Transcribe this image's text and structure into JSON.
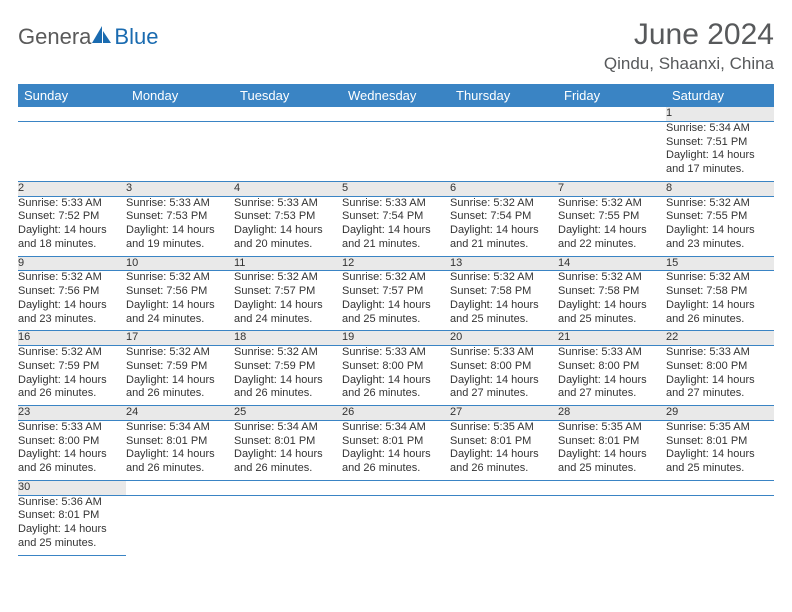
{
  "logo": {
    "part1": "Genera",
    "part2": "Blue"
  },
  "title": "June 2024",
  "location": "Qindu, Shaanxi, China",
  "colors": {
    "header_bg": "#3a84c4",
    "header_fg": "#ffffff",
    "daynum_bg": "#e9e9e9",
    "rule": "#3a84c4",
    "text": "#333333",
    "title": "#57595b",
    "logo_gray": "#5a5a5a",
    "logo_blue": "#1a6bb0"
  },
  "weekdays": [
    "Sunday",
    "Monday",
    "Tuesday",
    "Wednesday",
    "Thursday",
    "Friday",
    "Saturday"
  ],
  "weeks": [
    [
      null,
      null,
      null,
      null,
      null,
      null,
      {
        "n": "1",
        "rise": "5:34 AM",
        "set": "7:51 PM",
        "dl": "14 hours and 17 minutes."
      }
    ],
    [
      {
        "n": "2",
        "rise": "5:33 AM",
        "set": "7:52 PM",
        "dl": "14 hours and 18 minutes."
      },
      {
        "n": "3",
        "rise": "5:33 AM",
        "set": "7:53 PM",
        "dl": "14 hours and 19 minutes."
      },
      {
        "n": "4",
        "rise": "5:33 AM",
        "set": "7:53 PM",
        "dl": "14 hours and 20 minutes."
      },
      {
        "n": "5",
        "rise": "5:33 AM",
        "set": "7:54 PM",
        "dl": "14 hours and 21 minutes."
      },
      {
        "n": "6",
        "rise": "5:32 AM",
        "set": "7:54 PM",
        "dl": "14 hours and 21 minutes."
      },
      {
        "n": "7",
        "rise": "5:32 AM",
        "set": "7:55 PM",
        "dl": "14 hours and 22 minutes."
      },
      {
        "n": "8",
        "rise": "5:32 AM",
        "set": "7:55 PM",
        "dl": "14 hours and 23 minutes."
      }
    ],
    [
      {
        "n": "9",
        "rise": "5:32 AM",
        "set": "7:56 PM",
        "dl": "14 hours and 23 minutes."
      },
      {
        "n": "10",
        "rise": "5:32 AM",
        "set": "7:56 PM",
        "dl": "14 hours and 24 minutes."
      },
      {
        "n": "11",
        "rise": "5:32 AM",
        "set": "7:57 PM",
        "dl": "14 hours and 24 minutes."
      },
      {
        "n": "12",
        "rise": "5:32 AM",
        "set": "7:57 PM",
        "dl": "14 hours and 25 minutes."
      },
      {
        "n": "13",
        "rise": "5:32 AM",
        "set": "7:58 PM",
        "dl": "14 hours and 25 minutes."
      },
      {
        "n": "14",
        "rise": "5:32 AM",
        "set": "7:58 PM",
        "dl": "14 hours and 25 minutes."
      },
      {
        "n": "15",
        "rise": "5:32 AM",
        "set": "7:58 PM",
        "dl": "14 hours and 26 minutes."
      }
    ],
    [
      {
        "n": "16",
        "rise": "5:32 AM",
        "set": "7:59 PM",
        "dl": "14 hours and 26 minutes."
      },
      {
        "n": "17",
        "rise": "5:32 AM",
        "set": "7:59 PM",
        "dl": "14 hours and 26 minutes."
      },
      {
        "n": "18",
        "rise": "5:32 AM",
        "set": "7:59 PM",
        "dl": "14 hours and 26 minutes."
      },
      {
        "n": "19",
        "rise": "5:33 AM",
        "set": "8:00 PM",
        "dl": "14 hours and 26 minutes."
      },
      {
        "n": "20",
        "rise": "5:33 AM",
        "set": "8:00 PM",
        "dl": "14 hours and 27 minutes."
      },
      {
        "n": "21",
        "rise": "5:33 AM",
        "set": "8:00 PM",
        "dl": "14 hours and 27 minutes."
      },
      {
        "n": "22",
        "rise": "5:33 AM",
        "set": "8:00 PM",
        "dl": "14 hours and 27 minutes."
      }
    ],
    [
      {
        "n": "23",
        "rise": "5:33 AM",
        "set": "8:00 PM",
        "dl": "14 hours and 26 minutes."
      },
      {
        "n": "24",
        "rise": "5:34 AM",
        "set": "8:01 PM",
        "dl": "14 hours and 26 minutes."
      },
      {
        "n": "25",
        "rise": "5:34 AM",
        "set": "8:01 PM",
        "dl": "14 hours and 26 minutes."
      },
      {
        "n": "26",
        "rise": "5:34 AM",
        "set": "8:01 PM",
        "dl": "14 hours and 26 minutes."
      },
      {
        "n": "27",
        "rise": "5:35 AM",
        "set": "8:01 PM",
        "dl": "14 hours and 26 minutes."
      },
      {
        "n": "28",
        "rise": "5:35 AM",
        "set": "8:01 PM",
        "dl": "14 hours and 25 minutes."
      },
      {
        "n": "29",
        "rise": "5:35 AM",
        "set": "8:01 PM",
        "dl": "14 hours and 25 minutes."
      }
    ],
    [
      {
        "n": "30",
        "rise": "5:36 AM",
        "set": "8:01 PM",
        "dl": "14 hours and 25 minutes."
      },
      null,
      null,
      null,
      null,
      null,
      null
    ]
  ],
  "labels": {
    "sunrise": "Sunrise: ",
    "sunset": "Sunset: ",
    "daylight": "Daylight: "
  }
}
